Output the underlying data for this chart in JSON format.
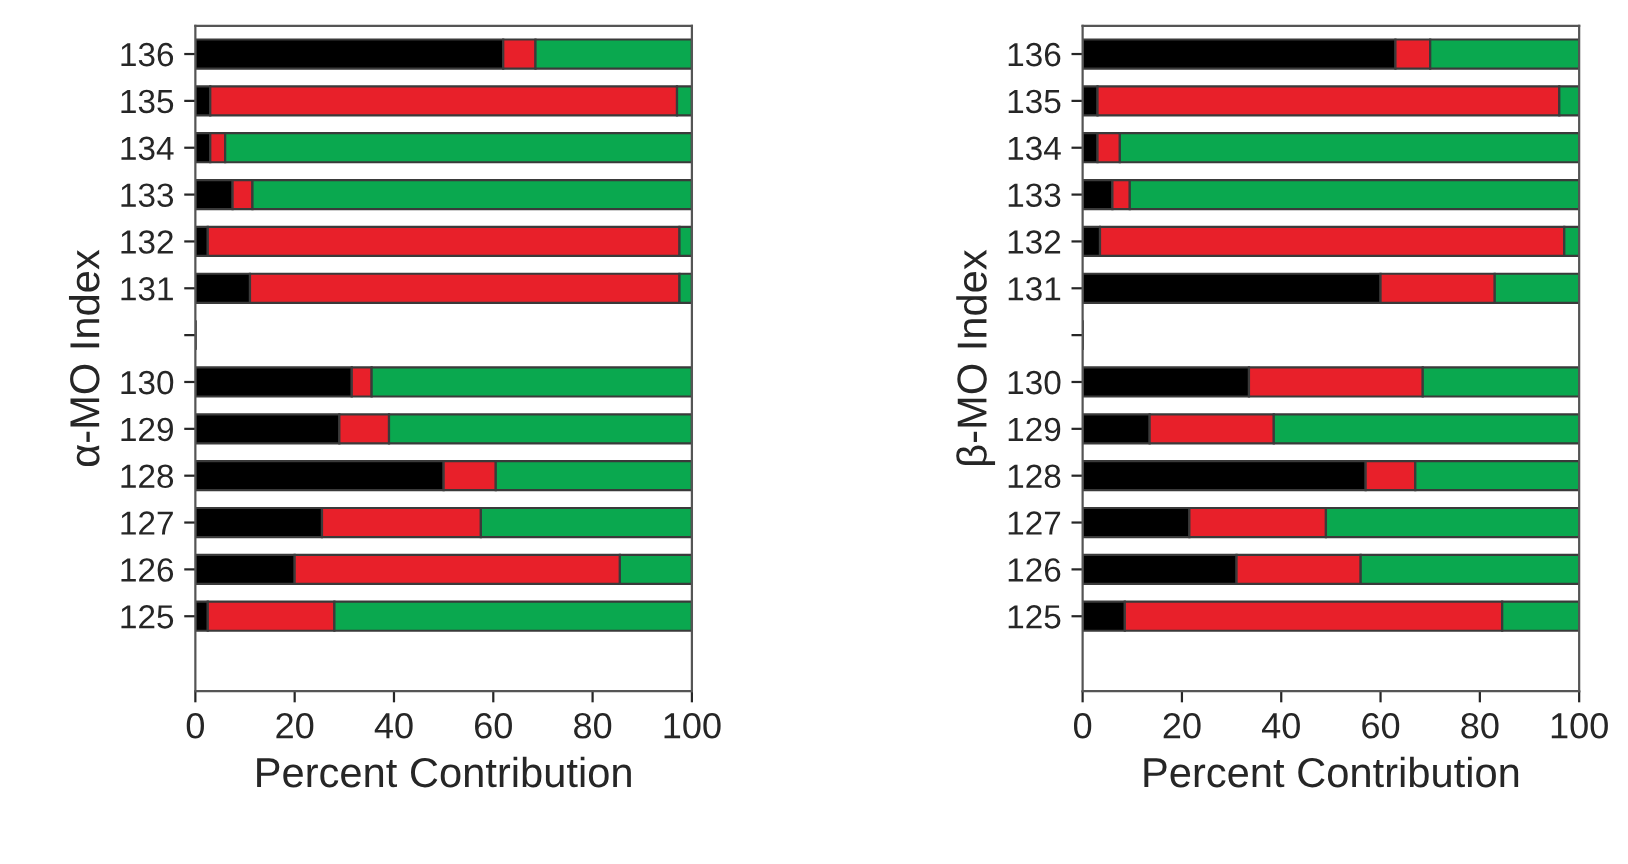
{
  "chart_data": [
    {
      "type": "bar",
      "orientation": "horizontal",
      "stacked": true,
      "ylabel": "α-MO Index",
      "xlabel": "Percent Contribution",
      "categories": [
        "136",
        "135",
        "134",
        "133",
        "132",
        "131",
        null,
        "130",
        "129",
        "128",
        "127",
        "126",
        "125"
      ],
      "xlim": [
        0,
        100
      ],
      "xticks": [
        0,
        20,
        40,
        60,
        80,
        100
      ],
      "grid": false,
      "legend": false,
      "series": [
        {
          "color": "#000000",
          "values": [
            62,
            3,
            3,
            7.5,
            2.5,
            11,
            null,
            31.5,
            29,
            50,
            25.5,
            20,
            2.5
          ]
        },
        {
          "color": "#e8202a",
          "values": [
            6.5,
            94,
            3,
            4,
            95,
            86.5,
            null,
            4,
            10,
            10.5,
            32,
            65.5,
            25.5
          ]
        },
        {
          "color": "#0aa84f",
          "values": [
            31.5,
            3,
            94,
            88.5,
            2.5,
            2.5,
            null,
            64.5,
            61,
            39.5,
            42.5,
            14.5,
            72
          ]
        }
      ]
    },
    {
      "type": "bar",
      "orientation": "horizontal",
      "stacked": true,
      "ylabel": "β-MO Index",
      "xlabel": "Percent Contribution",
      "categories": [
        "136",
        "135",
        "134",
        "133",
        "132",
        "131",
        null,
        "130",
        "129",
        "128",
        "127",
        "126",
        "125"
      ],
      "xlim": [
        0,
        100
      ],
      "xticks": [
        0,
        20,
        40,
        60,
        80,
        100
      ],
      "grid": false,
      "legend": false,
      "series": [
        {
          "color": "#000000",
          "values": [
            63,
            3,
            3,
            6,
            3.5,
            60,
            null,
            33.5,
            13.5,
            57,
            21.5,
            31,
            8.5
          ]
        },
        {
          "color": "#e8202a",
          "values": [
            7,
            93,
            4.5,
            3.5,
            93.5,
            23,
            null,
            35,
            25,
            10,
            27.5,
            25,
            76
          ]
        },
        {
          "color": "#0aa84f",
          "values": [
            30,
            4,
            92.5,
            90.5,
            3,
            17,
            null,
            31.5,
            61.5,
            33,
            51,
            44,
            15.5
          ]
        }
      ]
    }
  ]
}
